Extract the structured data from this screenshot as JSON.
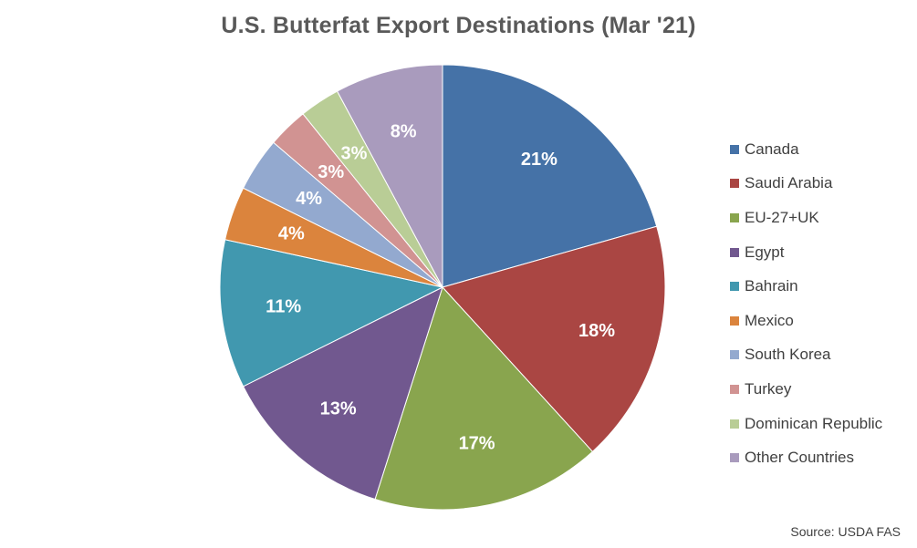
{
  "chart_data": {
    "type": "pie",
    "title": "U.S. Butterfat Export Destinations (Mar '21)",
    "source": "Source: USDA FAS",
    "legend_position": "right",
    "slices": [
      {
        "label": "Canada",
        "value": 21,
        "value_label": "21%",
        "color": "#4572A7"
      },
      {
        "label": "Saudi Arabia",
        "value": 18,
        "value_label": "18%",
        "color": "#AA4643"
      },
      {
        "label": "EU-27+UK",
        "value": 17,
        "value_label": "17%",
        "color": "#89A54E"
      },
      {
        "label": "Egypt",
        "value": 13,
        "value_label": "13%",
        "color": "#71588F"
      },
      {
        "label": "Bahrain",
        "value": 11,
        "value_label": "11%",
        "color": "#4198AF"
      },
      {
        "label": "Mexico",
        "value": 4,
        "value_label": "4%",
        "color": "#DB843D"
      },
      {
        "label": "South Korea",
        "value": 4,
        "value_label": "4%",
        "color": "#93A9CF"
      },
      {
        "label": "Turkey",
        "value": 3,
        "value_label": "3%",
        "color": "#D19392"
      },
      {
        "label": "Dominican Republic",
        "value": 3,
        "value_label": "3%",
        "color": "#B9CD96"
      },
      {
        "label": "Other Countries",
        "value": 8,
        "value_label": "8%",
        "color": "#A99BBD"
      }
    ]
  }
}
